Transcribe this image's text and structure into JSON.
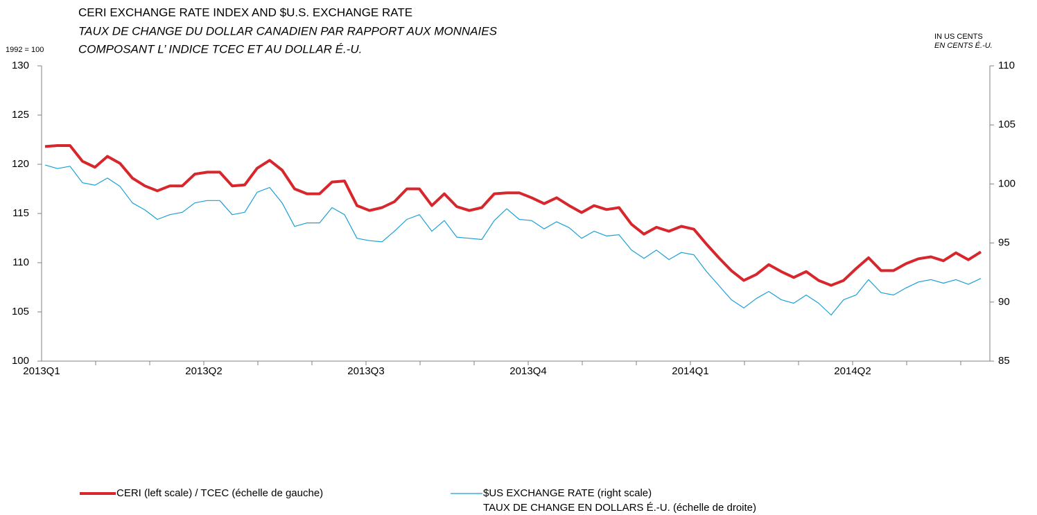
{
  "chart_data": {
    "type": "line",
    "title": "CERI EXCHANGE RATE INDEX AND $U.S. EXCHANGE RATE",
    "subtitle": [
      "TAUX DE CHANGE DU DOLLAR CANADIEN PAR RAPPORT AUX MONNAIES",
      "COMPOSANT L’ INDICE TCEC ET AU DOLLAR É.-U."
    ],
    "ylabel": "1992 = 100",
    "y2label": [
      "IN US CENTS",
      "EN CENTS É.-U."
    ],
    "categories": [
      "2013Q1",
      null,
      null,
      null,
      null,
      null,
      null,
      null,
      null,
      null,
      null,
      null,
      null,
      "2013Q2",
      null,
      null,
      null,
      null,
      null,
      null,
      null,
      null,
      null,
      null,
      null,
      null,
      "2013Q3",
      null,
      null,
      null,
      null,
      null,
      null,
      null,
      null,
      null,
      null,
      null,
      null,
      "2013Q4",
      null,
      null,
      null,
      null,
      null,
      null,
      null,
      null,
      null,
      null,
      null,
      null,
      "2014Q1",
      null,
      null,
      null,
      null,
      null,
      null,
      null,
      null,
      null,
      null,
      null,
      null,
      "2014Q2",
      null,
      null,
      null,
      null,
      null,
      null,
      null,
      null,
      null,
      null
    ],
    "ylim": [
      100,
      130
    ],
    "yticks": [
      100,
      105,
      110,
      115,
      120,
      125,
      130
    ],
    "y2lim": [
      85,
      110
    ],
    "y2ticks": [
      85,
      90,
      95,
      100,
      105,
      110
    ],
    "grid": false,
    "series": [
      {
        "name": "CERI (left scale) / TCEC (échelle de gauche)",
        "color": "#d7262c",
        "axis": "y",
        "values": [
          121.8,
          121.9,
          121.9,
          120.3,
          119.7,
          120.8,
          120.1,
          118.6,
          117.8,
          117.3,
          117.8,
          117.8,
          119.0,
          119.2,
          119.2,
          117.8,
          117.9,
          119.6,
          120.4,
          119.4,
          117.5,
          117.0,
          117.0,
          118.2,
          118.3,
          115.8,
          115.3,
          115.6,
          116.2,
          117.5,
          117.5,
          115.8,
          117.0,
          115.7,
          115.3,
          115.6,
          117.0,
          117.1,
          117.1,
          116.6,
          116.0,
          116.6,
          115.8,
          115.1,
          115.8,
          115.4,
          115.6,
          113.9,
          112.9,
          113.6,
          113.2,
          113.7,
          113.4,
          111.9,
          110.5,
          109.2,
          108.2,
          108.8,
          109.8,
          109.1,
          108.5,
          109.1,
          108.2,
          107.7,
          108.2,
          109.4,
          110.5,
          109.2,
          109.2,
          109.9,
          110.4,
          110.6,
          110.2,
          111.0,
          110.3,
          111.1
        ]
      },
      {
        "name": [
          "$US EXCHANGE RATE (right scale)",
          "TAUX DE CHANGE EN DOLLARS É.-U. (échelle de droite)"
        ],
        "color": "#1a9fd6",
        "axis": "y2",
        "values": [
          101.6,
          101.3,
          101.5,
          100.1,
          99.9,
          100.5,
          99.8,
          98.4,
          97.8,
          97.0,
          97.4,
          97.6,
          98.4,
          98.6,
          98.6,
          97.4,
          97.6,
          99.3,
          99.7,
          98.4,
          96.4,
          96.7,
          96.7,
          98.0,
          97.4,
          95.4,
          95.2,
          95.1,
          96.0,
          97.0,
          97.4,
          96.0,
          96.9,
          95.5,
          95.4,
          95.3,
          96.9,
          97.9,
          97.0,
          96.9,
          96.2,
          96.8,
          96.3,
          95.4,
          96.0,
          95.6,
          95.7,
          94.4,
          93.7,
          94.4,
          93.6,
          94.2,
          94.0,
          92.6,
          91.4,
          90.2,
          89.5,
          90.3,
          90.9,
          90.2,
          89.9,
          90.6,
          89.9,
          88.9,
          90.2,
          90.6,
          91.9,
          90.8,
          90.6,
          91.2,
          91.7,
          91.9,
          91.6,
          91.9,
          91.5,
          92.0
        ]
      }
    ]
  }
}
